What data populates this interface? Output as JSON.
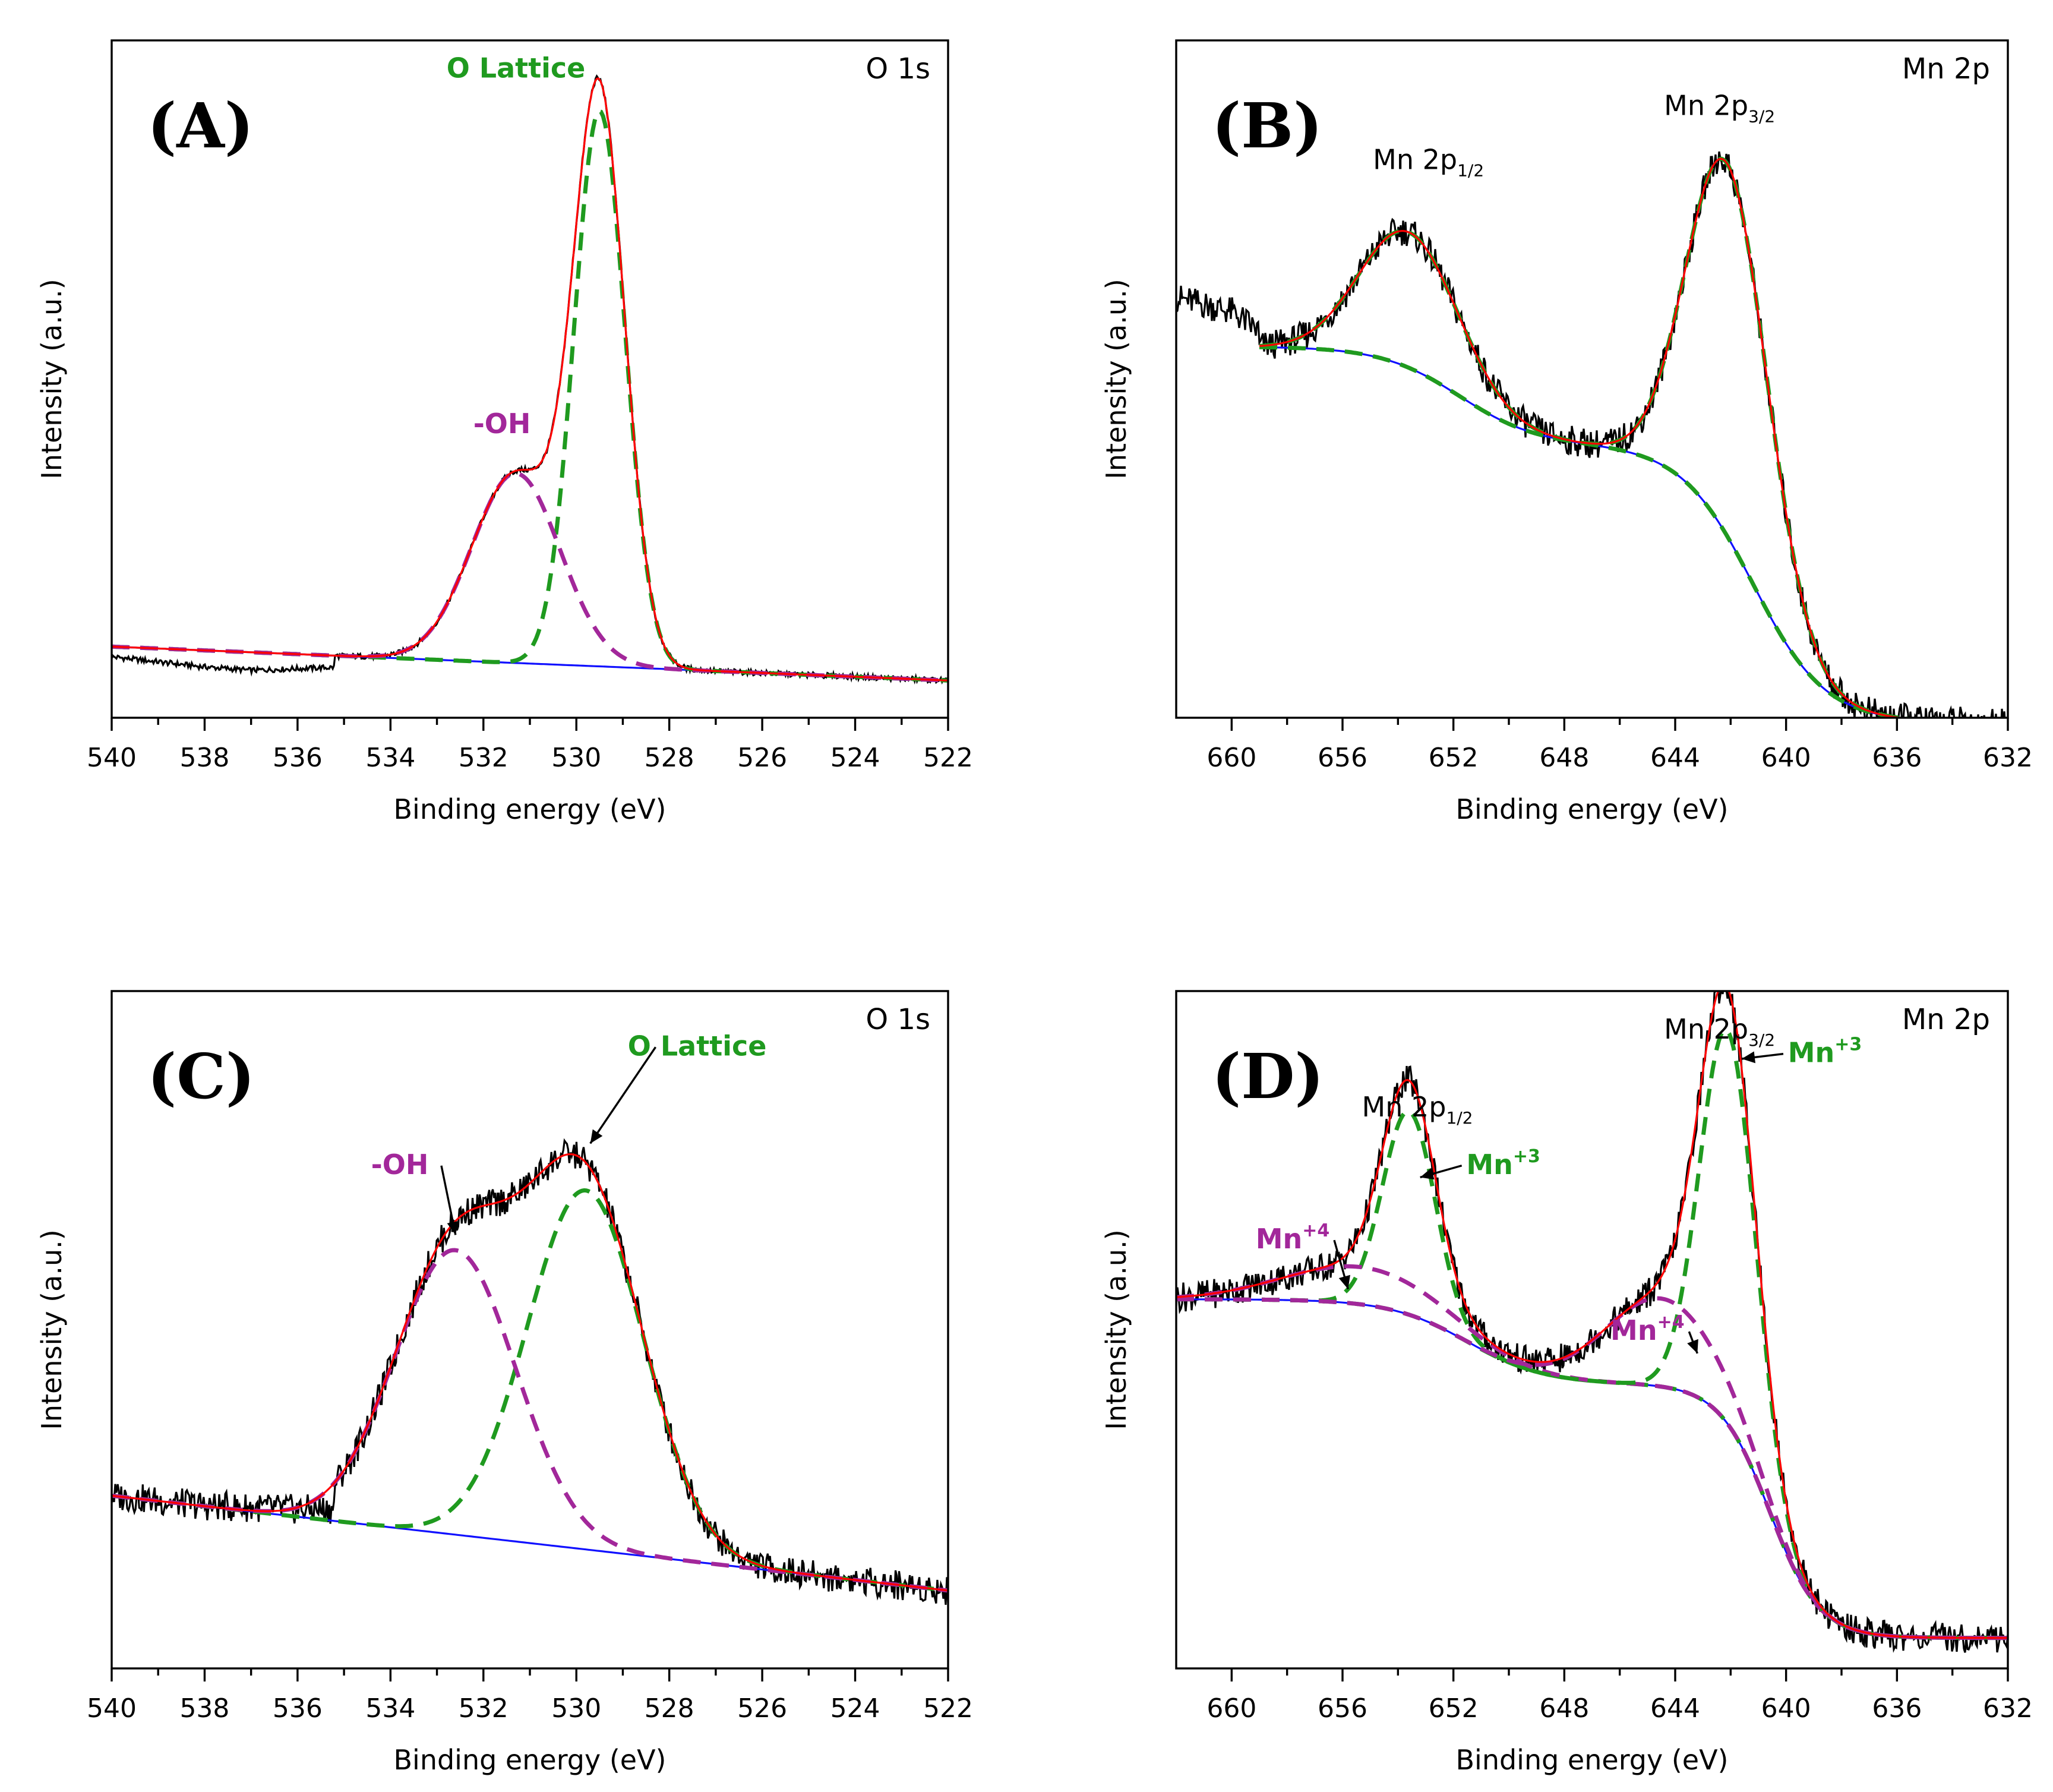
{
  "colors": {
    "raw": "#000000",
    "fit": "#ff0000",
    "lattice": "#1f9a1f",
    "hydroxyl": "#a2279a",
    "background": "#1010ff"
  },
  "chart_data": [
    {
      "id": "A",
      "type": "line",
      "panel_label": "(A)",
      "corner_label": "O 1s",
      "xlabel": "Binding energy (eV)",
      "ylabel": "Intensity (a.u.)",
      "xlim": [
        540,
        522
      ],
      "ylim": [
        0,
        1.0
      ],
      "xticks": [
        540,
        538,
        536,
        534,
        532,
        530,
        528,
        526,
        524,
        522
      ],
      "xtick_labels": [
        "540",
        "538",
        "536",
        "534",
        "532",
        "530",
        "528",
        "526",
        "524",
        "522"
      ],
      "baseline": {
        "x1": 540,
        "y1": 0.105,
        "x2": 522,
        "y2": 0.055
      },
      "raw_extra": [
        [
          540,
          0.09
        ],
        [
          538,
          0.075
        ],
        [
          537,
          0.07
        ],
        [
          535,
          0.075
        ]
      ],
      "peaks": [
        {
          "name": "O Lattice",
          "role": "lattice",
          "center": 529.5,
          "height": 0.82,
          "sigma": 0.55
        },
        {
          "name": "-OH",
          "role": "hydroxyl",
          "center": 531.3,
          "height": 0.28,
          "sigma": 0.95
        }
      ],
      "annotations": [
        {
          "text": "O Lattice",
          "role": "lattice",
          "x": 531.3,
          "y": 0.945,
          "bold": true
        },
        {
          "text": "-OH",
          "role": "hydroxyl",
          "x": 531.6,
          "y": 0.42,
          "bold": true
        }
      ]
    },
    {
      "id": "B",
      "type": "line",
      "panel_label": "(B)",
      "corner_label": "Mn 2p",
      "xlabel": "Binding energy (eV)",
      "ylabel": "Intensity (a.u.)",
      "xlim": [
        662,
        632
      ],
      "ylim": [
        0,
        1.0
      ],
      "xticks": [
        660,
        656,
        652,
        648,
        644,
        640,
        636,
        632
      ],
      "xtick_labels": [
        "660",
        "656",
        "652",
        "648",
        "644",
        "640",
        "636",
        "632"
      ],
      "shirley": {
        "x_start": 659,
        "x_end": 632,
        "steps": [
          {
            "center": 651.8,
            "drop": 0.145,
            "width": 1.4
          },
          {
            "center": 641.2,
            "drop": 0.41,
            "width": 1.3
          }
        ],
        "start": 0.548
      },
      "raw_extra": [
        [
          662,
          0.62
        ],
        [
          660,
          0.6
        ],
        [
          659,
          0.57
        ]
      ],
      "peaks": [
        {
          "name": "Mn 2p1/2",
          "role": "lattice",
          "center": 653.6,
          "height": 0.2,
          "sigma": 1.75
        },
        {
          "name": "Mn 2p3/2",
          "role": "lattice",
          "center": 642.1,
          "height": 0.55,
          "sigma": 1.45
        }
      ],
      "annotations": [
        {
          "text": "Mn 2p",
          "sub": "1/2",
          "role": "raw",
          "x": 652.9,
          "y": 0.81
        },
        {
          "text": "Mn 2p",
          "sub": "3/2",
          "role": "raw",
          "x": 642.4,
          "y": 0.89
        }
      ]
    },
    {
      "id": "C",
      "type": "line",
      "panel_label": "(C)",
      "corner_label": "O 1s",
      "xlabel": "Binding energy (eV)",
      "ylabel": "Intensity (a.u.)",
      "xlim": [
        540,
        522
      ],
      "ylim": [
        0,
        1.0
      ],
      "xticks": [
        540,
        538,
        536,
        534,
        532,
        530,
        528,
        526,
        524,
        522
      ],
      "xtick_labels": [
        "540",
        "538",
        "536",
        "534",
        "532",
        "530",
        "528",
        "526",
        "524",
        "522"
      ],
      "baseline": {
        "x1": 540,
        "y1": 0.255,
        "x2": 522,
        "y2": 0.115
      },
      "raw_extra": [
        [
          540,
          0.255
        ],
        [
          538,
          0.24
        ],
        [
          536,
          0.235
        ]
      ],
      "peaks": [
        {
          "name": "O Lattice",
          "role": "lattice",
          "center": 529.8,
          "height": 0.53,
          "sigma": 1.25
        },
        {
          "name": "-OH",
          "role": "hydroxyl",
          "center": 532.6,
          "height": 0.42,
          "sigma": 1.3
        }
      ],
      "annotations": [
        {
          "text": "O Lattice",
          "role": "lattice",
          "x": 527.4,
          "y": 0.905,
          "bold": true,
          "arrow_to": [
            529.7,
            0.775
          ]
        },
        {
          "text": "-OH",
          "role": "hydroxyl",
          "x": 533.8,
          "y": 0.73,
          "bold": true,
          "arrow_to": [
            532.6,
            0.64
          ]
        }
      ]
    },
    {
      "id": "D",
      "type": "line",
      "panel_label": "(D)",
      "corner_label": "Mn 2p",
      "xlabel": "Binding energy (eV)",
      "ylabel": "Intensity (a.u.)",
      "xlim": [
        662,
        632
      ],
      "ylim": [
        0,
        1.0
      ],
      "xticks": [
        660,
        656,
        652,
        648,
        644,
        640,
        636,
        632
      ],
      "xtick_labels": [
        "660",
        "656",
        "652",
        "648",
        "644",
        "640",
        "636",
        "632"
      ],
      "shirley": {
        "x_start": 662,
        "x_end": 632,
        "steps": [
          {
            "center": 651.5,
            "drop": 0.125,
            "width": 1.4
          },
          {
            "center": 640.6,
            "drop": 0.375,
            "width": 0.9
          }
        ],
        "start": 0.545
      },
      "raw_extra": [
        [
          662,
          0.55
        ],
        [
          660,
          0.55
        ]
      ],
      "peaks": [
        {
          "name": "Mn+3",
          "role": "lattice",
          "center": 653.6,
          "height": 0.3,
          "sigma": 0.95
        },
        {
          "name": "Mn+4",
          "role": "hydroxyl",
          "center": 655.3,
          "height": 0.055,
          "sigma": 2.8
        },
        {
          "name": "Mn+3",
          "role": "lattice",
          "center": 642.1,
          "height": 0.58,
          "sigma": 1.0
        },
        {
          "name": "Mn+4",
          "role": "hydroxyl",
          "center": 644.5,
          "height": 0.13,
          "sigma": 2.0
        }
      ],
      "annotations": [
        {
          "text": "Mn 2p",
          "sub": "1/2",
          "role": "raw",
          "x": 653.3,
          "y": 0.815
        },
        {
          "text": "Mn 2p",
          "sub": "3/2",
          "role": "raw",
          "x": 642.4,
          "y": 0.93
        },
        {
          "text": "Mn",
          "sup": "+3",
          "role": "lattice",
          "x": 650.2,
          "y": 0.73,
          "bold": true,
          "arrow_to": [
            653.2,
            0.725
          ]
        },
        {
          "text": "Mn",
          "sup": "+3",
          "role": "lattice",
          "x": 638.6,
          "y": 0.895,
          "bold": true,
          "arrow_to": [
            641.6,
            0.9
          ]
        },
        {
          "text": "Mn",
          "sup": "+4",
          "role": "hydroxyl",
          "x": 657.8,
          "y": 0.62,
          "bold": true,
          "arrow_to": [
            655.8,
            0.56
          ]
        },
        {
          "text": "Mn",
          "sup": "+4",
          "role": "hydroxyl",
          "x": 645.0,
          "y": 0.485,
          "bold": true,
          "arrow_to": [
            643.2,
            0.465
          ]
        }
      ]
    }
  ]
}
